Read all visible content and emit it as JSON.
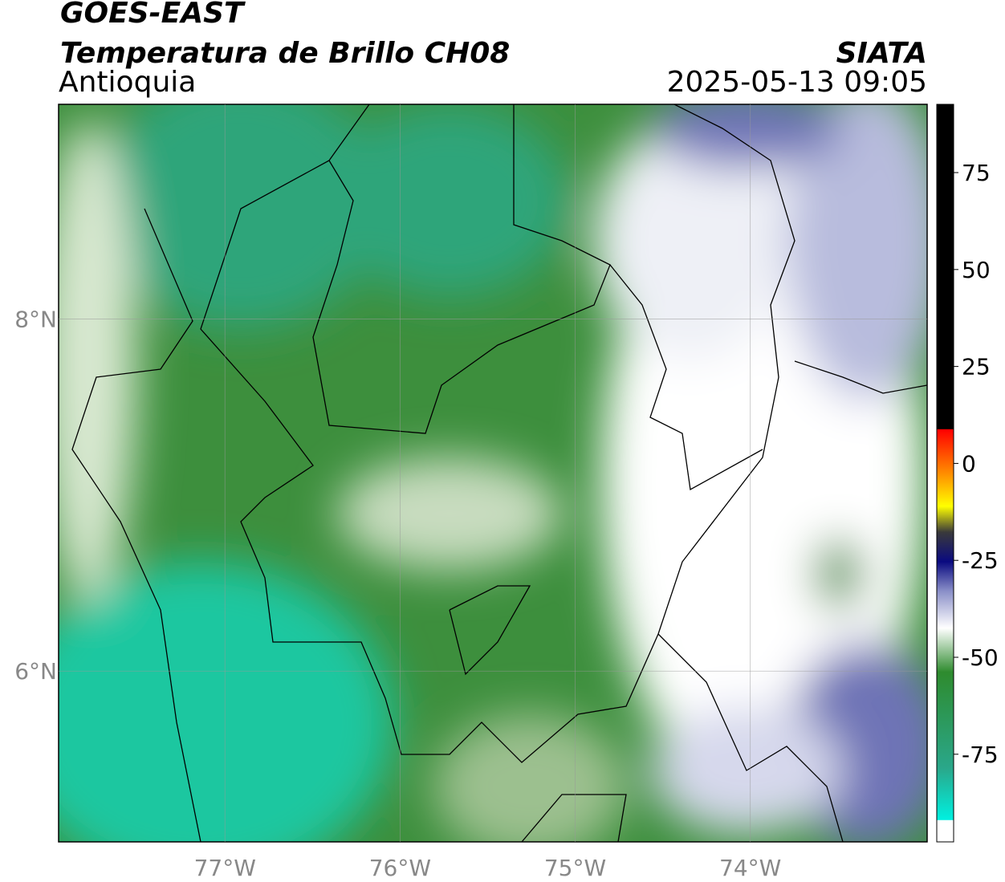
{
  "header": {
    "satellite": "GOES-EAST",
    "product": "Temperatura de Brillo CH08",
    "region": "Antioquia",
    "agency": "SIATA",
    "datetime": "2025-05-13 09:05"
  },
  "map": {
    "lon_range": [
      -77.95,
      -72.99
    ],
    "lat_range": [
      5.03,
      9.22
    ],
    "lon_ticks": [
      {
        "value": -77,
        "label": "77°W"
      },
      {
        "value": -76,
        "label": "76°W"
      },
      {
        "value": -75,
        "label": "75°W"
      },
      {
        "value": -74,
        "label": "74°W"
      }
    ],
    "lat_ticks": [
      {
        "value": 8,
        "label": "8°N"
      },
      {
        "value": 6,
        "label": "6°N"
      }
    ],
    "grid": true
  },
  "colorbar": {
    "range": [
      -97.6,
      92.6
    ],
    "ticks": [
      75,
      50,
      25,
      0,
      -25,
      -50,
      -75
    ]
  }
}
